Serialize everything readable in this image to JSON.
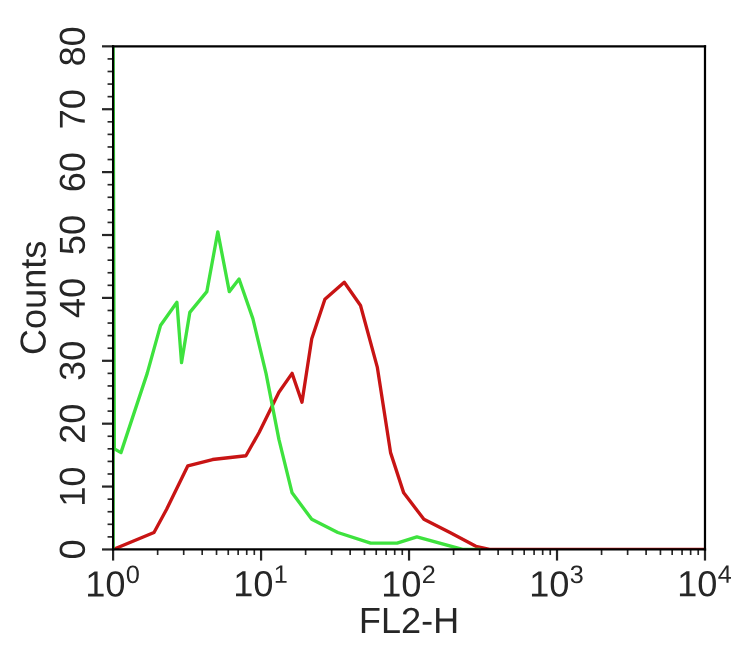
{
  "chart_data": {
    "type": "line",
    "xlabel": "FL2-H",
    "ylabel": "Counts",
    "log": "x",
    "grid": false,
    "legend": false,
    "xlim": [
      1,
      10000
    ],
    "ylim": [
      0,
      80
    ],
    "xticks": [
      {
        "value": 1,
        "label": "10$^{0}$"
      },
      {
        "value": 10,
        "label": "10$^{1}$"
      },
      {
        "value": 100,
        "label": "10$^{2}$"
      },
      {
        "value": 1000,
        "label": "10$^{3}$"
      },
      {
        "value": 10000,
        "label": "10$^{4}$"
      }
    ],
    "yticks": [
      0,
      10,
      20,
      30,
      40,
      50,
      60,
      70,
      80
    ],
    "series": [
      {
        "color": "#c81414",
        "x": [
          1.0,
          1.89,
          2.3,
          3.2,
          4.7,
          7.9,
          9.7,
          13.2,
          16.2,
          18.9,
          22,
          27,
          36.5,
          47,
          61,
          75,
          92,
          126,
          189,
          283,
          350,
          10000
        ],
        "values": [
          0,
          2.7,
          6.4,
          13.3,
          14.3,
          14.9,
          18.6,
          25,
          28,
          23.4,
          33.5,
          39.8,
          42.5,
          38.8,
          29,
          15.4,
          9,
          4.8,
          2.7,
          0.5,
          0,
          0
        ]
      },
      {
        "color": "#3ee23e",
        "x": [
          1.0,
          1.0,
          1.02,
          1.13,
          1.39,
          1.7,
          2.09,
          2.7,
          2.9,
          3.3,
          4.3,
          5.1,
          6.1,
          7.1,
          8.8,
          10.8,
          13.2,
          16.2,
          22,
          33,
          55,
          83,
          113,
          230,
          300
        ],
        "values": [
          0,
          80,
          16,
          15.4,
          21.8,
          28,
          35.6,
          39.3,
          29.7,
          37.7,
          41,
          50.5,
          41,
          43,
          36.7,
          28,
          17.5,
          9,
          4.8,
          2.7,
          1,
          1,
          2,
          0,
          0
        ]
      }
    ]
  }
}
